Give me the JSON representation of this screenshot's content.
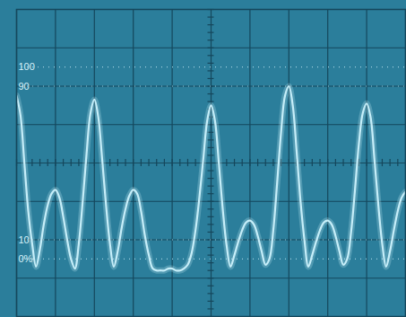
{
  "chart_data": {
    "type": "line",
    "x": [
      0,
      0.1,
      0.2,
      0.3,
      0.4,
      0.5,
      0.6,
      0.7,
      0.8,
      0.9,
      1,
      1.1,
      1.2,
      1.3,
      1.4,
      1.5,
      1.6,
      1.7,
      1.8,
      1.9,
      2,
      2.1,
      2.2,
      2.3,
      2.4,
      2.5,
      2.6,
      2.7,
      2.8,
      2.9,
      3,
      3.1,
      3.2,
      3.3,
      3.4,
      3.5,
      3.6,
      3.7,
      3.8,
      3.9,
      4,
      4.1,
      4.2,
      4.3,
      4.4,
      4.5,
      4.6,
      4.7,
      4.8,
      4.9,
      5,
      5.1,
      5.2,
      5.3,
      5.4,
      5.5,
      5.6,
      5.7,
      5.8,
      5.9,
      6,
      6.1,
      6.2,
      6.3,
      6.4,
      6.5,
      6.6,
      6.7,
      6.8,
      6.9,
      7,
      7.1,
      7.2,
      7.3,
      7.4,
      7.5,
      7.6,
      7.7,
      7.8,
      7.9,
      8,
      8.1,
      8.2,
      8.3,
      8.4,
      8.5,
      8.6,
      8.7,
      8.8,
      8.9,
      9,
      9.1,
      9.2,
      9.3,
      9.4,
      9.5,
      9.6,
      9.7,
      9.8,
      9.9,
      10
    ],
    "values": [
      85,
      75,
      50,
      25,
      8,
      -4,
      5,
      18,
      28,
      34,
      36,
      32,
      22,
      10,
      0,
      -5,
      8,
      30,
      55,
      76,
      83,
      74,
      52,
      28,
      8,
      -4,
      4,
      16,
      26,
      33,
      36,
      34,
      25,
      12,
      2,
      -5,
      -6,
      -6,
      -6,
      -5,
      -5,
      -6,
      -6,
      -5,
      -3,
      3,
      15,
      32,
      52,
      72,
      80,
      72,
      50,
      26,
      7,
      -4,
      2,
      9,
      15,
      19,
      20,
      18,
      12,
      4,
      -3,
      0,
      15,
      40,
      66,
      85,
      90,
      80,
      56,
      30,
      10,
      -4,
      2,
      9,
      15,
      19,
      20,
      18,
      12,
      4,
      -3,
      0,
      14,
      36,
      60,
      76,
      81,
      74,
      52,
      28,
      8,
      -4,
      4,
      15,
      25,
      32,
      35
    ],
    "color": "#c6eef9",
    "xlim": [
      0,
      10
    ],
    "ylim": [
      -30,
      130
    ],
    "yticks": [
      {
        "value": 0,
        "label": "0%"
      },
      10,
      90,
      100
    ],
    "grid": true,
    "tick_labels": "y"
  }
}
